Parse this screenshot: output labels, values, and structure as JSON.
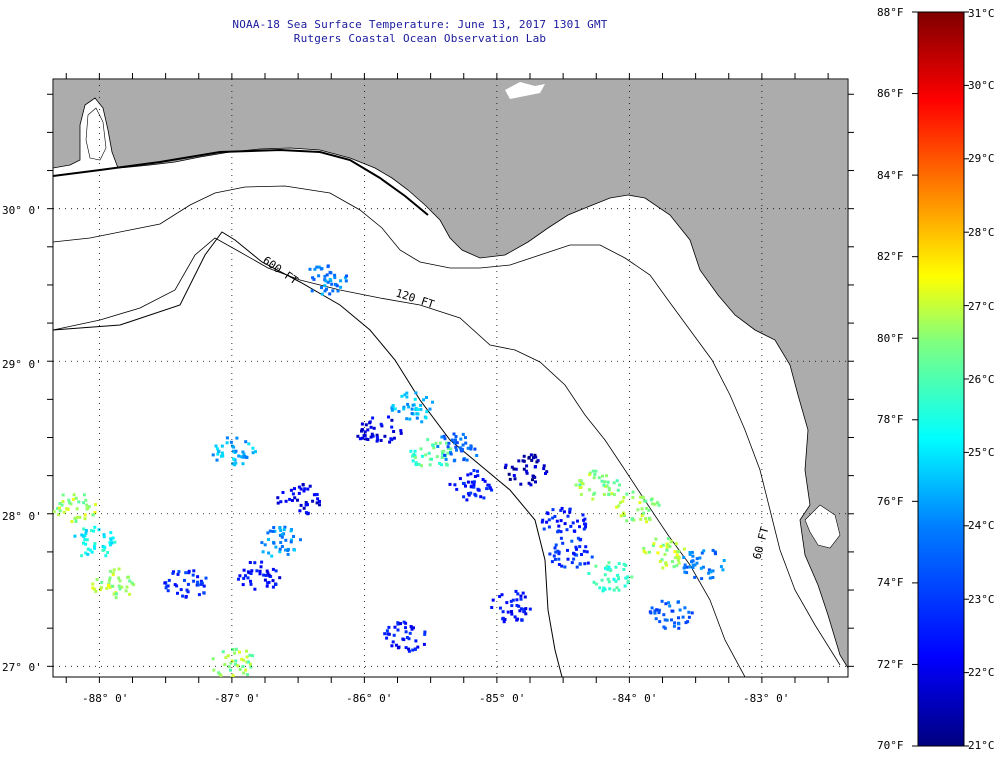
{
  "title": {
    "line1": "NOAA-18 Sea Surface Temperature:  June 13, 2017 1301 GMT",
    "line2": "Rutgers Coastal Ocean Observation Lab"
  },
  "map": {
    "lon_range": [
      -88.35,
      -82.35
    ],
    "lat_range": [
      26.93,
      30.85
    ],
    "lon_labels": [
      "-88° 0'",
      "-87° 0'",
      "-86° 0'",
      "-85° 0'",
      "-84° 0'",
      "-83° 0'"
    ],
    "lon_values": [
      -88,
      -87,
      -86,
      -85,
      -84,
      -83
    ],
    "lat_labels": [
      "30° 0'",
      "29° 0'",
      "28° 0'",
      "27° 0'"
    ],
    "lat_values": [
      30,
      29,
      28,
      27
    ],
    "grid": "dotted",
    "land_color": "#acacac",
    "ocean_color": "#ffffff",
    "contour_labels": [
      "600 FT",
      "120 FT",
      "60 FT"
    ]
  },
  "colorbar": {
    "fahrenheit_labels": [
      "88°F",
      "86°F",
      "84°F",
      "82°F",
      "80°F",
      "78°F",
      "76°F",
      "74°F",
      "72°F",
      "70°F"
    ],
    "celsius_labels": [
      "31°C",
      "30°C",
      "29°C",
      "28°C",
      "27°C",
      "26°C",
      "25°C",
      "24°C",
      "23°C",
      "22°C",
      "21°C"
    ],
    "range_c": [
      21,
      31
    ],
    "colors": [
      "#00007f",
      "#0000ff",
      "#007fff",
      "#00ffff",
      "#7fff7f",
      "#ffff00",
      "#ff7f00",
      "#ff0000",
      "#7f0000"
    ]
  },
  "sst_patches": [
    {
      "lon": -88.2,
      "lat": 28.05,
      "c": 26.7
    },
    {
      "lon": -87.9,
      "lat": 27.55,
      "c": 26.8
    },
    {
      "lon": -88.05,
      "lat": 27.82,
      "c": 25.3
    },
    {
      "lon": -87.0,
      "lat": 28.42,
      "c": 24.5
    },
    {
      "lon": -86.65,
      "lat": 27.82,
      "c": 24.2
    },
    {
      "lon": -86.8,
      "lat": 27.6,
      "c": 22.3
    },
    {
      "lon": -87.35,
      "lat": 27.55,
      "c": 22.8
    },
    {
      "lon": -87.0,
      "lat": 27.03,
      "c": 26.6
    },
    {
      "lon": -86.5,
      "lat": 28.1,
      "c": 22.0
    },
    {
      "lon": -86.3,
      "lat": 29.55,
      "c": 24.0
    },
    {
      "lon": -85.9,
      "lat": 28.55,
      "c": 22.0
    },
    {
      "lon": -85.65,
      "lat": 28.7,
      "c": 24.5
    },
    {
      "lon": -85.5,
      "lat": 28.4,
      "c": 26.0
    },
    {
      "lon": -85.3,
      "lat": 28.45,
      "c": 23.6
    },
    {
      "lon": -85.2,
      "lat": 28.2,
      "c": 22.5
    },
    {
      "lon": -84.8,
      "lat": 28.3,
      "c": 21.5
    },
    {
      "lon": -84.5,
      "lat": 27.95,
      "c": 22.6
    },
    {
      "lon": -84.25,
      "lat": 28.2,
      "c": 26.5
    },
    {
      "lon": -83.95,
      "lat": 28.05,
      "c": 26.7
    },
    {
      "lon": -83.75,
      "lat": 27.75,
      "c": 26.8
    },
    {
      "lon": -84.15,
      "lat": 27.6,
      "c": 25.8
    },
    {
      "lon": -83.45,
      "lat": 27.68,
      "c": 23.8
    },
    {
      "lon": -83.7,
      "lat": 27.35,
      "c": 23.5
    },
    {
      "lon": -84.45,
      "lat": 27.75,
      "c": 23.0
    },
    {
      "lon": -85.7,
      "lat": 27.2,
      "c": 22.4
    },
    {
      "lon": -84.9,
      "lat": 27.4,
      "c": 22.4
    }
  ]
}
